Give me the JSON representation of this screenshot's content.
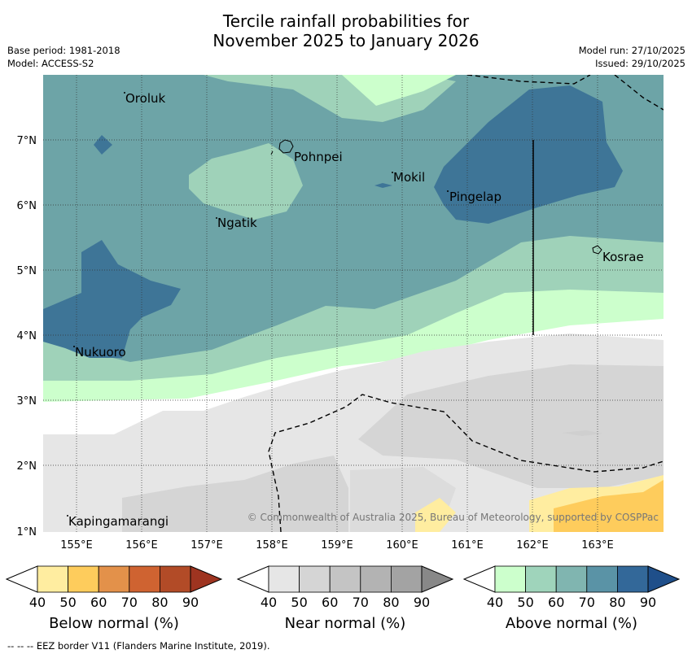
{
  "header": {
    "title_line1": "Tercile rainfall probabilities for",
    "title_line2": "November 2025 to January 2026",
    "base_period": "Base period: 1981-2018",
    "model": "Model: ACCESS-S2",
    "model_run": "Model run: 27/10/2025",
    "issued": "Issued: 29/10/2025"
  },
  "map": {
    "lon_labels": [
      "155°E",
      "156°E",
      "157°E",
      "158°E",
      "159°E",
      "160°E",
      "161°E",
      "162°E",
      "163°E"
    ],
    "lat_labels": [
      "7°N",
      "6°N",
      "5°N",
      "4°N",
      "3°N",
      "2°N",
      "1°N"
    ],
    "places": [
      "Oroluk",
      "Pohnpei",
      "Mokil",
      "Pingelap",
      "Ngatik",
      "Kosrae",
      "Nukuoro",
      "Kapingamarangi"
    ],
    "copyright": "© Commonwealth of Australia 2025, Bureau of Meteorology, supported by COSPPac"
  },
  "colorbars": [
    {
      "title": "Below normal (%)",
      "ticks": [
        "40",
        "50",
        "60",
        "70",
        "80",
        "90"
      ],
      "colors": [
        "#ffffff",
        "#ffeda0",
        "#fecc5c",
        "#e3914a",
        "#cf6331",
        "#b24b27",
        "#9e3420"
      ]
    },
    {
      "title": "Near normal (%)",
      "ticks": [
        "40",
        "50",
        "60",
        "70",
        "80",
        "90"
      ],
      "colors": [
        "#ffffff",
        "#e6e6e6",
        "#d5d5d5",
        "#c4c4c4",
        "#b3b3b3",
        "#a3a3a3",
        "#888888"
      ]
    },
    {
      "title": "Above normal (%)",
      "ticks": [
        "40",
        "50",
        "60",
        "70",
        "80",
        "90"
      ],
      "colors": [
        "#ffffff",
        "#ccffcc",
        "#9fd4bb",
        "#80b5b0",
        "#5a93a6",
        "#336899",
        "#1f4f8a"
      ]
    }
  ],
  "footer": {
    "eez_note": "-- -- -- EEZ border V11 (Flanders Marine Institute, 2019)."
  }
}
